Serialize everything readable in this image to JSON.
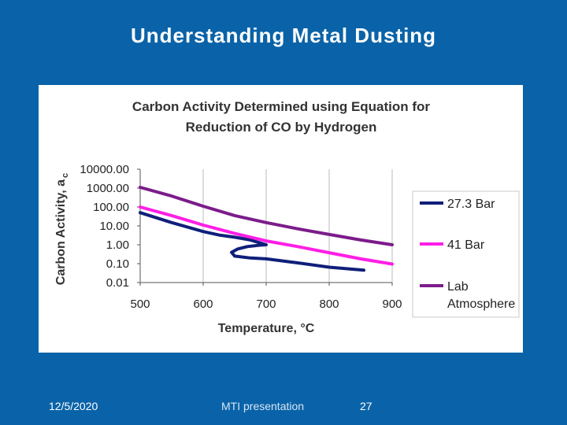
{
  "slide": {
    "title": "Understanding Metal Dusting",
    "date": "12/5/2020",
    "presenter": "MTI presentation",
    "page_number": "27"
  },
  "chart_data": {
    "type": "line",
    "title_lines": [
      "Carbon Activity Determined using Equation for",
      "Reduction of CO by Hydrogen"
    ],
    "xlabel": "Temperature, °C",
    "ylabel": "Carbon Activity, a",
    "ylabel_subscript": "c",
    "xlim": [
      500,
      900
    ],
    "x_ticks": [
      500,
      600,
      700,
      800,
      900
    ],
    "x_tick_labels": [
      "500",
      "600",
      "700",
      "800",
      "900"
    ],
    "y_scale": "log",
    "ylim": [
      0.01,
      10000
    ],
    "y_ticks": [
      0.01,
      0.1,
      1,
      10,
      100,
      1000,
      10000
    ],
    "y_tick_labels": [
      "0.01",
      "0.10",
      "1.00",
      "10.00",
      "100.00",
      "1000.00",
      "10000.00"
    ],
    "grid": "vertical",
    "legend_position": "right",
    "series": [
      {
        "name": "27.3 Bar",
        "color": "#0f1f7a",
        "points": [
          [
            500,
            50
          ],
          [
            550,
            15
          ],
          [
            600,
            5
          ],
          [
            625,
            3.3
          ],
          [
            650,
            2.5
          ],
          [
            675,
            1.8
          ],
          [
            700,
            1.0
          ],
          [
            690,
            0.95
          ],
          [
            670,
            0.8
          ],
          [
            655,
            0.6
          ],
          [
            645,
            0.4
          ],
          [
            650,
            0.25
          ],
          [
            675,
            0.2
          ],
          [
            700,
            0.18
          ],
          [
            750,
            0.11
          ],
          [
            800,
            0.065
          ],
          [
            855,
            0.045
          ]
        ]
      },
      {
        "name": "41 Bar",
        "color": "#ff1ee6",
        "points": [
          [
            500,
            100
          ],
          [
            550,
            35
          ],
          [
            600,
            11
          ],
          [
            650,
            4
          ],
          [
            700,
            1.6
          ],
          [
            750,
            0.8
          ],
          [
            800,
            0.38
          ],
          [
            850,
            0.18
          ],
          [
            900,
            0.095
          ]
        ]
      },
      {
        "name": "Lab Atmosphere",
        "legend_lines": [
          "Lab",
          "Atmosphere"
        ],
        "color": "#7b1c8a",
        "points": [
          [
            500,
            1100
          ],
          [
            550,
            380
          ],
          [
            600,
            110
          ],
          [
            650,
            35
          ],
          [
            700,
            15
          ],
          [
            750,
            7
          ],
          [
            800,
            3.5
          ],
          [
            850,
            1.8
          ],
          [
            900,
            1.0
          ]
        ]
      }
    ]
  }
}
